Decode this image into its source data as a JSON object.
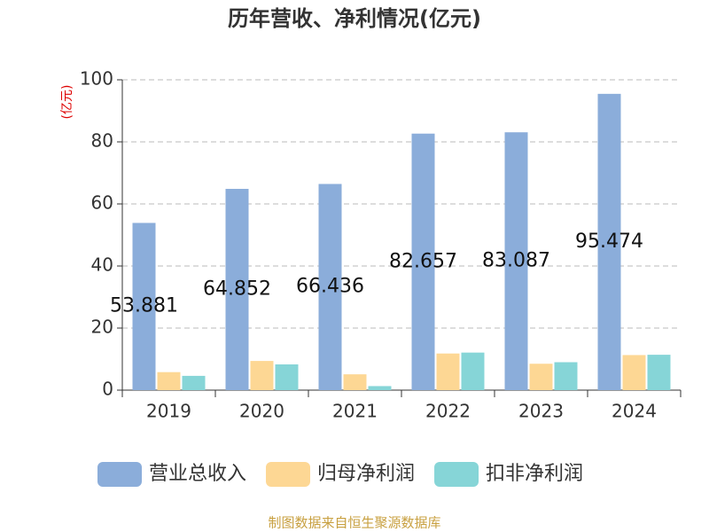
{
  "chart_data": {
    "type": "bar",
    "title": "历年营收、净利情况(亿元)",
    "y_label": "(亿元)",
    "categories": [
      "2019",
      "2020",
      "2021",
      "2022",
      "2023",
      "2024"
    ],
    "series": [
      {
        "name": "营业总收入",
        "color": "#8badda",
        "values": [
          53.881,
          64.852,
          66.436,
          82.657,
          83.087,
          95.474
        ],
        "data_labels": true
      },
      {
        "name": "归母净利润",
        "color": "#fdd794",
        "values": [
          5.8,
          9.4,
          5.1,
          11.8,
          8.5,
          11.3
        ]
      },
      {
        "name": "扣非净利润",
        "color": "#86d5d7",
        "values": [
          4.6,
          8.3,
          1.3,
          12.1,
          9.0,
          11.4
        ]
      }
    ],
    "ylim": [
      0,
      100
    ],
    "yticks": [
      0,
      20,
      40,
      60,
      80,
      100
    ],
    "grid": true,
    "legend": "bottom",
    "source": "制图数据来自恒生聚源数据库"
  }
}
